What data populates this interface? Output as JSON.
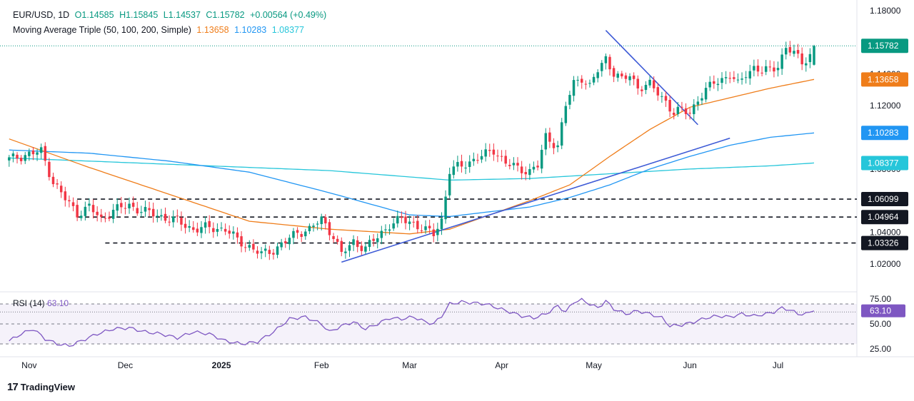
{
  "header": {
    "symbol": "EUR/USD, 1D",
    "open": "O1.14585",
    "high": "H1.15845",
    "low": "L1.14537",
    "close": "C1.15782",
    "change": "+0.00564 (+0.49%)",
    "indicator_name": "Moving Average Triple (50, 100, 200, Simple)",
    "ma50": "1.13658",
    "ma100": "1.10283",
    "ma200": "1.08377"
  },
  "rsi": {
    "label": "RSI (14)",
    "value": "63.10"
  },
  "branding": {
    "name": "TradingView"
  },
  "colors": {
    "up": "#089981",
    "down": "#f23645",
    "ma50": "#ef7d1a",
    "ma100": "#2196f3",
    "ma200": "#26c6da",
    "trendline": "#3d5ad6",
    "rsi": "#7e57c2",
    "price_tag": "#089981"
  },
  "chart_data": {
    "type": "candlestick",
    "price_axis": {
      "ticks": [
        "1.18000",
        "1.14000",
        "1.12000",
        "1.08000",
        "1.04000",
        "1.02000"
      ],
      "ylim": [
        1.01,
        1.18
      ]
    },
    "time_axis": {
      "labels": [
        "Nov",
        "Dec",
        "2025",
        "Feb",
        "Mar",
        "Apr",
        "May",
        "Jun",
        "Jul"
      ]
    },
    "price_tags": [
      {
        "label": "1.15782",
        "value": 1.15782,
        "color": "#089981"
      },
      {
        "label": "1.13658",
        "value": 1.13658,
        "color": "#ef7d1a"
      },
      {
        "label": "1.10283",
        "value": 1.10283,
        "color": "#2196f3"
      },
      {
        "label": "1.08377",
        "value": 1.08377,
        "color": "#26c6da"
      },
      {
        "label": "1.06099",
        "value": 1.06099,
        "color": "#131722"
      },
      {
        "label": "1.04964",
        "value": 1.04964,
        "color": "#131722"
      },
      {
        "label": "1.03326",
        "value": 1.03326,
        "color": "#131722"
      }
    ],
    "horizontal_levels": [
      {
        "value": 1.06099,
        "from": 17,
        "to": 250
      },
      {
        "value": 1.04964,
        "from": 17,
        "to": 250
      },
      {
        "value": 1.03326,
        "from": 24,
        "to": 250
      }
    ],
    "trendlines": [
      {
        "from": [
          83,
          1.0212
        ],
        "to": [
          180,
          1.0995
        ]
      },
      {
        "from": [
          149,
          1.1676
        ],
        "to": [
          172,
          1.108
        ]
      }
    ],
    "close_series_anchors": [
      [
        0,
        1.086
      ],
      [
        4,
        1.089
      ],
      [
        8,
        1.091
      ],
      [
        11,
        1.072
      ],
      [
        14,
        1.061
      ],
      [
        17,
        1.052
      ],
      [
        20,
        1.056
      ],
      [
        23,
        1.048
      ],
      [
        26,
        1.054
      ],
      [
        30,
        1.057
      ],
      [
        34,
        1.053
      ],
      [
        38,
        1.05
      ],
      [
        42,
        1.047
      ],
      [
        46,
        1.042
      ],
      [
        50,
        1.043
      ],
      [
        54,
        1.042
      ],
      [
        57,
        1.035
      ],
      [
        60,
        1.031
      ],
      [
        63,
        1.026
      ],
      [
        66,
        1.029
      ],
      [
        69,
        1.034
      ],
      [
        72,
        1.04
      ],
      [
        75,
        1.042
      ],
      [
        78,
        1.048
      ],
      [
        81,
        1.038
      ],
      [
        83,
        1.026
      ],
      [
        86,
        1.034
      ],
      [
        89,
        1.03
      ],
      [
        92,
        1.037
      ],
      [
        95,
        1.045
      ],
      [
        98,
        1.048
      ],
      [
        101,
        1.046
      ],
      [
        104,
        1.041
      ],
      [
        106,
        1.039
      ],
      [
        108,
        1.048
      ],
      [
        110,
        1.079
      ],
      [
        113,
        1.082
      ],
      [
        116,
        1.086
      ],
      [
        119,
        1.089
      ],
      [
        121,
        1.092
      ],
      [
        124,
        1.084
      ],
      [
        127,
        1.08
      ],
      [
        130,
        1.079
      ],
      [
        132,
        1.082
      ],
      [
        134,
        1.1
      ],
      [
        137,
        1.095
      ],
      [
        139,
        1.12
      ],
      [
        141,
        1.134
      ],
      [
        143,
        1.138
      ],
      [
        145,
        1.132
      ],
      [
        147,
        1.142
      ],
      [
        149,
        1.15
      ],
      [
        151,
        1.141
      ],
      [
        153,
        1.136
      ],
      [
        155,
        1.139
      ],
      [
        157,
        1.132
      ],
      [
        160,
        1.133
      ],
      [
        162,
        1.128
      ],
      [
        164,
        1.123
      ],
      [
        166,
        1.115
      ],
      [
        168,
        1.117
      ],
      [
        170,
        1.116
      ],
      [
        172,
        1.124
      ],
      [
        174,
        1.129
      ],
      [
        176,
        1.135
      ],
      [
        178,
        1.137
      ],
      [
        180,
        1.139
      ],
      [
        182,
        1.133
      ],
      [
        184,
        1.141
      ],
      [
        186,
        1.144
      ],
      [
        188,
        1.141
      ],
      [
        190,
        1.143
      ],
      [
        192,
        1.146
      ],
      [
        194,
        1.156
      ],
      [
        196,
        1.153
      ],
      [
        198,
        1.148
      ],
      [
        200,
        1.152
      ],
      [
        201,
        1.1578
      ]
    ],
    "ma50_anchors": [
      [
        0,
        1.099
      ],
      [
        20,
        1.081
      ],
      [
        40,
        1.064
      ],
      [
        60,
        1.047
      ],
      [
        80,
        1.042
      ],
      [
        100,
        1.039
      ],
      [
        110,
        1.042
      ],
      [
        120,
        1.051
      ],
      [
        130,
        1.06
      ],
      [
        140,
        1.07
      ],
      [
        150,
        1.088
      ],
      [
        160,
        1.105
      ],
      [
        170,
        1.119
      ],
      [
        180,
        1.125
      ],
      [
        190,
        1.131
      ],
      [
        201,
        1.1366
      ]
    ],
    "ma100_anchors": [
      [
        0,
        1.092
      ],
      [
        20,
        1.09
      ],
      [
        40,
        1.085
      ],
      [
        60,
        1.078
      ],
      [
        80,
        1.065
      ],
      [
        100,
        1.051
      ],
      [
        110,
        1.05
      ],
      [
        120,
        1.053
      ],
      [
        130,
        1.056
      ],
      [
        140,
        1.062
      ],
      [
        150,
        1.07
      ],
      [
        160,
        1.08
      ],
      [
        170,
        1.088
      ],
      [
        180,
        1.095
      ],
      [
        190,
        1.1
      ],
      [
        201,
        1.1028
      ]
    ],
    "ma200_anchors": [
      [
        0,
        1.087
      ],
      [
        40,
        1.083
      ],
      [
        80,
        1.079
      ],
      [
        110,
        1.073
      ],
      [
        130,
        1.074
      ],
      [
        150,
        1.077
      ],
      [
        170,
        1.08
      ],
      [
        190,
        1.082
      ],
      [
        201,
        1.0838
      ]
    ],
    "rsi_pane": {
      "ticks": [
        "75.00",
        "50.00",
        "25.00"
      ],
      "levels": [
        70,
        62,
        50,
        30
      ],
      "ylim": [
        20,
        80
      ],
      "anchors": [
        [
          0,
          33
        ],
        [
          3,
          40
        ],
        [
          6,
          45
        ],
        [
          9,
          35
        ],
        [
          12,
          30
        ],
        [
          15,
          28
        ],
        [
          18,
          33
        ],
        [
          22,
          40
        ],
        [
          26,
          45
        ],
        [
          30,
          46
        ],
        [
          34,
          42
        ],
        [
          38,
          40
        ],
        [
          42,
          36
        ],
        [
          46,
          42
        ],
        [
          50,
          40
        ],
        [
          54,
          33
        ],
        [
          58,
          30
        ],
        [
          62,
          32
        ],
        [
          66,
          42
        ],
        [
          70,
          55
        ],
        [
          74,
          57
        ],
        [
          78,
          50
        ],
        [
          80,
          42
        ],
        [
          83,
          48
        ],
        [
          86,
          52
        ],
        [
          89,
          45
        ],
        [
          92,
          50
        ],
        [
          95,
          56
        ],
        [
          98,
          55
        ],
        [
          101,
          57
        ],
        [
          104,
          52
        ],
        [
          106,
          50
        ],
        [
          108,
          58
        ],
        [
          110,
          70
        ],
        [
          113,
          72
        ],
        [
          116,
          71
        ],
        [
          119,
          70
        ],
        [
          122,
          66
        ],
        [
          125,
          62
        ],
        [
          128,
          58
        ],
        [
          131,
          56
        ],
        [
          134,
          60
        ],
        [
          137,
          68
        ],
        [
          139,
          62
        ],
        [
          141,
          72
        ],
        [
          143,
          74
        ],
        [
          145,
          70
        ],
        [
          147,
          66
        ],
        [
          149,
          73
        ],
        [
          151,
          65
        ],
        [
          154,
          60
        ],
        [
          157,
          63
        ],
        [
          160,
          60
        ],
        [
          163,
          56
        ],
        [
          165,
          48
        ],
        [
          168,
          49
        ],
        [
          171,
          52
        ],
        [
          174,
          56
        ],
        [
          177,
          58
        ],
        [
          180,
          57
        ],
        [
          183,
          60
        ],
        [
          186,
          58
        ],
        [
          189,
          60
        ],
        [
          191,
          62
        ],
        [
          193,
          66
        ],
        [
          195,
          64
        ],
        [
          197,
          60
        ],
        [
          199,
          60
        ],
        [
          201,
          63.1
        ]
      ]
    }
  }
}
